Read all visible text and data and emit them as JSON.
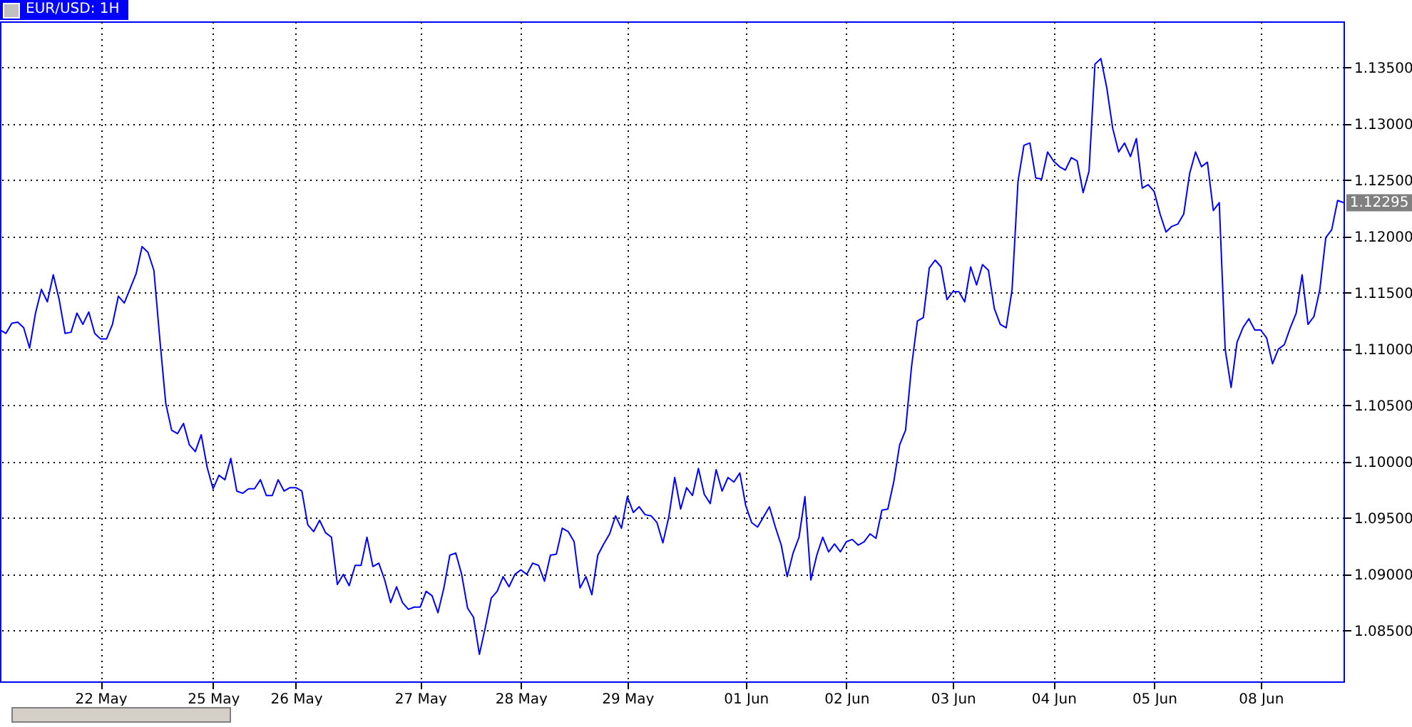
{
  "chart_data": {
    "type": "line",
    "title": "EUR/USD: 1H",
    "categories": [
      null,
      null,
      null,
      null,
      null,
      null,
      null,
      null,
      null,
      null,
      null,
      null,
      null,
      null,
      null,
      null,
      null,
      "22 May",
      null,
      null,
      null,
      null,
      null,
      null,
      null,
      null,
      null,
      null,
      null,
      null,
      null,
      null,
      null,
      null,
      null,
      null,
      "25 May",
      null,
      null,
      null,
      null,
      null,
      null,
      null,
      null,
      null,
      null,
      null,
      null,
      null,
      "26 May",
      null,
      null,
      null,
      null,
      null,
      null,
      null,
      null,
      null,
      null,
      null,
      null,
      null,
      null,
      null,
      null,
      null,
      null,
      null,
      null,
      "27 May",
      null,
      null,
      null,
      null,
      null,
      null,
      null,
      null,
      null,
      null,
      null,
      null,
      null,
      null,
      null,
      null,
      "28 May",
      null,
      null,
      null,
      null,
      null,
      null,
      null,
      null,
      null,
      null,
      null,
      null,
      null,
      null,
      null,
      null,
      null,
      "29 May",
      null,
      null,
      null,
      null,
      null,
      null,
      null,
      null,
      null,
      null,
      null,
      null,
      null,
      null,
      null,
      null,
      null,
      null,
      null,
      "01 Jun",
      null,
      null,
      null,
      null,
      null,
      null,
      null,
      null,
      null,
      null,
      null,
      null,
      null,
      null,
      null,
      null,
      "02 Jun",
      null,
      null,
      null,
      null,
      null,
      null,
      null,
      null,
      null,
      null,
      null,
      null,
      null,
      null,
      null,
      null,
      null,
      "03 Jun",
      null,
      null,
      null,
      null,
      null,
      null,
      null,
      null,
      null,
      null,
      null,
      null,
      null,
      null,
      null,
      null,
      "04 Jun",
      null,
      null,
      null,
      null,
      null,
      null,
      null,
      null,
      null,
      null,
      null,
      null,
      null,
      null,
      null,
      null,
      "05 Jun",
      null,
      null,
      null,
      null,
      null,
      null,
      null,
      null,
      null,
      null,
      null,
      null,
      null,
      null,
      null,
      null,
      null,
      "08 Jun",
      null,
      null,
      null,
      null,
      null,
      null,
      null,
      null,
      null,
      null,
      null,
      null,
      null,
      null
    ],
    "series": [
      {
        "color": "#0000ff",
        "values": [
          1.1117,
          1.1114,
          1.1123,
          1.1124,
          1.1119,
          1.1101,
          1.1132,
          1.1153,
          1.1142,
          1.1166,
          1.1144,
          1.1114,
          1.1115,
          1.1132,
          1.1122,
          1.1133,
          1.1114,
          1.1109,
          1.1109,
          1.1122,
          1.1147,
          1.1141,
          1.1154,
          1.1167,
          1.1191,
          1.1186,
          1.117,
          1.1109,
          1.1052,
          1.1028,
          1.1025,
          1.1034,
          1.1015,
          1.1009,
          1.1024,
          1.0995,
          1.0976,
          1.0988,
          1.0984,
          1.1003,
          1.0974,
          1.0972,
          1.0976,
          1.0976,
          1.0984,
          1.097,
          1.097,
          1.0984,
          1.0974,
          1.0977,
          1.0977,
          1.0974,
          1.0944,
          1.0938,
          1.0948,
          1.0937,
          1.0933,
          1.0891,
          1.09,
          1.089,
          1.0908,
          1.0908,
          1.0933,
          1.0907,
          1.091,
          1.0895,
          1.0875,
          1.0889,
          1.0875,
          1.0869,
          1.0871,
          1.0871,
          1.0885,
          1.0881,
          1.0866,
          1.0888,
          1.0917,
          1.0919,
          1.09,
          1.087,
          1.0862,
          1.0829,
          1.0853,
          1.0879,
          1.0885,
          1.0898,
          1.0889,
          1.09,
          1.0904,
          1.09,
          1.091,
          1.0908,
          1.0894,
          1.0917,
          1.0918,
          1.0941,
          1.0938,
          1.0929,
          1.0888,
          1.0898,
          1.0882,
          1.0917,
          1.0927,
          1.0936,
          1.0952,
          1.0941,
          1.0969,
          1.0955,
          1.096,
          1.0953,
          1.0952,
          1.0946,
          1.0928,
          1.0951,
          1.0986,
          1.0958,
          1.0977,
          1.097,
          1.0994,
          1.0971,
          1.0963,
          1.0993,
          1.0974,
          1.0986,
          1.0982,
          1.099,
          1.0961,
          1.0946,
          1.0942,
          1.0951,
          1.096,
          1.0942,
          1.0926,
          1.0898,
          1.0919,
          1.0933,
          1.0969,
          1.0895,
          1.0917,
          1.0933,
          1.092,
          1.0927,
          1.092,
          1.0929,
          1.0931,
          1.0926,
          1.0929,
          1.0936,
          1.0932,
          1.0957,
          1.0958,
          1.0982,
          1.1015,
          1.1028,
          1.1084,
          1.1125,
          1.1128,
          1.1172,
          1.1179,
          1.1173,
          1.1144,
          1.1151,
          1.1151,
          1.1142,
          1.1173,
          1.1157,
          1.1175,
          1.117,
          1.1136,
          1.1122,
          1.1119,
          1.1153,
          1.1249,
          1.1281,
          1.1283,
          1.1252,
          1.1251,
          1.1275,
          1.1267,
          1.1262,
          1.1259,
          1.127,
          1.1267,
          1.1239,
          1.1258,
          1.1353,
          1.1358,
          1.1332,
          1.1296,
          1.1275,
          1.1283,
          1.1271,
          1.1287,
          1.1243,
          1.1246,
          1.124,
          1.122,
          1.1204,
          1.1209,
          1.1211,
          1.122,
          1.1256,
          1.1275,
          1.1262,
          1.1266,
          1.1223,
          1.123,
          1.11,
          1.1066,
          1.1106,
          1.1119,
          1.1127,
          1.1117,
          1.1117,
          1.111,
          1.1087,
          1.11,
          1.1104,
          1.1119,
          1.1132,
          1.1166,
          1.1122,
          1.1129,
          1.1153,
          1.1199,
          1.1206,
          1.1232,
          1.123
        ]
      }
    ],
    "ylim": [
      1.0805,
      1.1391
    ],
    "yticks": [
      {
        "value": 1.085,
        "label": "1.08500"
      },
      {
        "value": 1.09,
        "label": "1.09000"
      },
      {
        "value": 1.095,
        "label": "1.09500"
      },
      {
        "value": 1.1,
        "label": "1.10000"
      },
      {
        "value": 1.105,
        "label": "1.10500"
      },
      {
        "value": 1.11,
        "label": "1.11000"
      },
      {
        "value": 1.115,
        "label": "1.11500"
      },
      {
        "value": 1.12,
        "label": "1.12000"
      },
      {
        "value": 1.125,
        "label": "1.12500"
      },
      {
        "value": 1.13,
        "label": "1.13000"
      },
      {
        "value": 1.135,
        "label": "1.13500"
      }
    ],
    "annotations": [
      "1.12295"
    ],
    "grid": true,
    "marker": "none",
    "line_style": "solid"
  }
}
